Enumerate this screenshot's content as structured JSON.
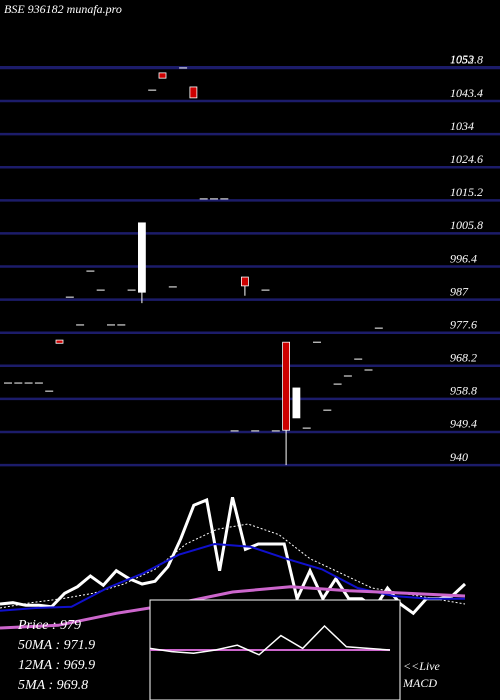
{
  "chart_data": {
    "type": "candlestick",
    "title": "BSE 936182 munafa.pro",
    "ylim": [
      938.6,
      1072.1
    ],
    "yticks": [
      1053,
      1052.8,
      1043.4,
      1034,
      1024.6,
      1015.2,
      1005.8,
      996.4,
      987,
      977.6,
      968.2,
      958.8,
      949.4,
      940
    ],
    "grid": true,
    "grid_color": "#1c1c6a",
    "up_color": "#ffffff",
    "down_color": "#cc0000",
    "candles": [
      {
        "o": 963.3,
        "c": 963.3
      },
      {
        "o": 963.3,
        "c": 963.3
      },
      {
        "o": 963.3,
        "c": 963.3
      },
      {
        "o": 963.3,
        "c": 963.3
      },
      {
        "o": 961,
        "c": 961
      },
      {
        "o": 975.5,
        "c": 974.6
      },
      {
        "o": 987.7,
        "c": 987.7
      },
      {
        "o": 979.8,
        "c": 979.8
      },
      {
        "o": 995.1,
        "c": 995.1
      },
      {
        "o": 989.7,
        "c": 989.7
      },
      {
        "o": 979.8,
        "c": 979.8
      },
      {
        "o": 979.8,
        "c": 979.8
      },
      {
        "o": 989.7,
        "c": 989.7
      },
      {
        "o": 989.1,
        "c": 1008.8,
        "l": 986
      },
      {
        "o": 1046.5,
        "c": 1046.5
      },
      {
        "o": 1051.4,
        "c": 1049.9
      },
      {
        "o": 990.6,
        "c": 990.6
      },
      {
        "o": 1052.8,
        "c": 1052.8
      },
      {
        "o": 1047.4,
        "c": 1044.3
      },
      {
        "o": 1015.6,
        "c": 1015.6
      },
      {
        "o": 1015.6,
        "c": 1015.6
      },
      {
        "o": 1015.6,
        "c": 1015.6
      },
      {
        "o": 949.7,
        "c": 949.7
      },
      {
        "o": 993.4,
        "c": 990.9,
        "l": 988.1
      },
      {
        "o": 949.7,
        "c": 949.7
      },
      {
        "o": 989.7,
        "c": 989.7
      },
      {
        "o": 949.7,
        "c": 949.7
      },
      {
        "o": 974.9,
        "c": 949.9,
        "l": 940
      },
      {
        "o": 953.4,
        "c": 961.9
      },
      {
        "o": 950.5,
        "c": 950.5
      },
      {
        "o": 974.9,
        "c": 974.9
      },
      {
        "o": 955.6,
        "c": 955.6
      },
      {
        "o": 963,
        "c": 963
      },
      {
        "o": 965.3,
        "c": 965.3
      },
      {
        "o": 970.1,
        "c": 970.1
      },
      {
        "o": 967,
        "c": 967
      },
      {
        "o": 978.9,
        "c": 978.9
      }
    ],
    "indicator_ylim": [
      -20,
      100
    ],
    "indicator_series": [
      {
        "color": "#ffffff",
        "width": 3,
        "values": [
          7,
          8,
          6,
          6,
          5,
          15,
          20,
          28,
          21,
          32,
          26,
          22,
          24,
          35,
          56,
          81,
          85,
          32,
          87,
          48,
          52,
          52,
          52,
          11,
          32,
          11,
          26,
          11,
          11,
          4,
          19,
          7,
          0,
          11,
          11,
          13,
          22
        ]
      },
      {
        "color": "#ffffff",
        "width": 1,
        "dash": "2,2",
        "values": [
          4,
          8,
          11,
          15,
          22,
          33,
          52,
          63,
          67,
          59,
          41,
          30,
          19,
          15,
          11,
          7
        ]
      },
      {
        "color": "#1010cc",
        "width": 2,
        "values": [
          2,
          4,
          5,
          19,
          30,
          44,
          52,
          50,
          41,
          33,
          19,
          13,
          11,
          11
        ]
      },
      {
        "color": "#cc66cc",
        "width": 3,
        "values": [
          -11,
          -9,
          0,
          7,
          16,
          20,
          17,
          15,
          13
        ]
      }
    ],
    "macd_series": [
      {
        "color": "#cc66cc",
        "width": 2,
        "values": [
          50,
          50,
          50,
          50,
          50,
          50,
          50,
          50,
          50,
          50,
          50,
          50
        ]
      },
      {
        "color": "#ffffff",
        "width": 1.5,
        "values": [
          52,
          48,
          46,
          50,
          56,
          44,
          68,
          52,
          80,
          54,
          52,
          50
        ]
      }
    ],
    "macd_ylim": [
      0,
      100
    ],
    "info": [
      "Price   : 979",
      "50MA : 971.9",
      "12MA : 969.9",
      "5MA : 969.8"
    ],
    "live_label": "<<Live",
    "macd_label": "MACD"
  }
}
